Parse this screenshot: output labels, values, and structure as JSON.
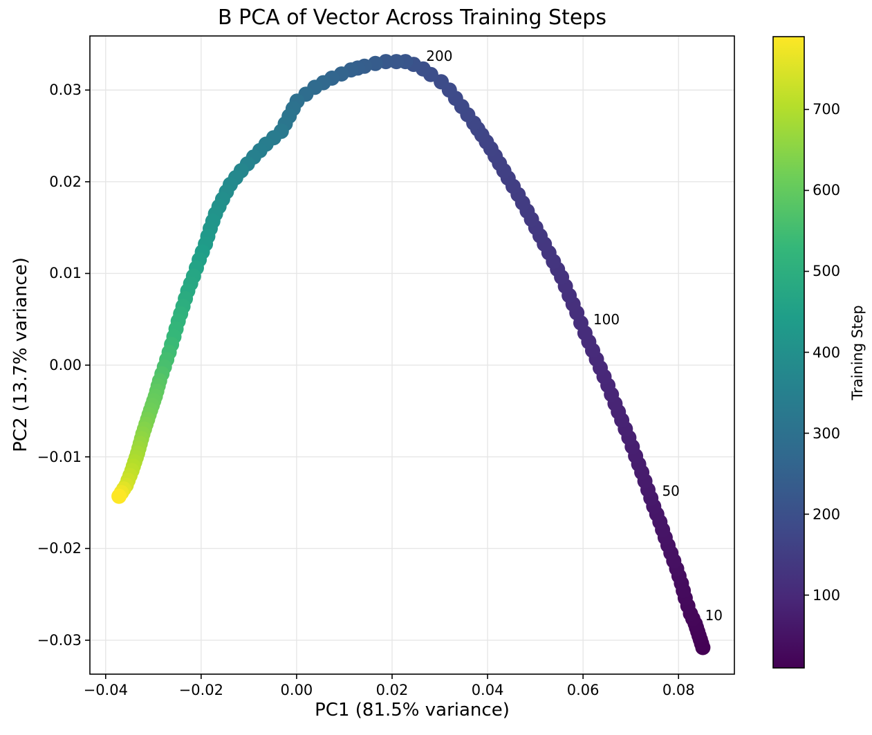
{
  "chart_data": {
    "type": "scatter",
    "title": "B PCA of Vector Across Training Steps",
    "xlabel": "PC1 (81.5% variance)",
    "ylabel": "PC2 (13.7% variance)",
    "xlim": [
      -0.0433,
      0.0917
    ],
    "ylim": [
      -0.0337,
      0.0359
    ],
    "grid": true,
    "grid_color": "#e6e6e6",
    "background": "#ffffff",
    "x_ticks": {
      "values": [
        -0.04,
        -0.02,
        0.0,
        0.02,
        0.04,
        0.06,
        0.08
      ],
      "labels": [
        "−0.04",
        "−0.02",
        "0.00",
        "0.02",
        "0.04",
        "0.06",
        "0.08"
      ]
    },
    "y_ticks": {
      "values": [
        -0.03,
        -0.02,
        -0.01,
        0.0,
        0.01,
        0.02,
        0.03
      ],
      "labels": [
        "−0.03",
        "−0.02",
        "−0.01",
        "0.00",
        "0.01",
        "0.02",
        "0.03"
      ]
    },
    "colorbar": {
      "label": "Training Step",
      "colormap": "viridis",
      "vmin": 10,
      "vmax": 790,
      "ticks": [
        100,
        200,
        300,
        400,
        500,
        600,
        700
      ],
      "viridis_stops": [
        "#440154",
        "#482878",
        "#3e4a89",
        "#31688e",
        "#26828e",
        "#1f9e89",
        "#35b779",
        "#6ece58",
        "#b5de2b",
        "#fde725"
      ]
    },
    "annotations": [
      {
        "text": "200",
        "x": 0.0299,
        "y": 0.0337
      },
      {
        "text": "100",
        "x": 0.0649,
        "y": 0.005
      },
      {
        "text": "50",
        "x": 0.0784,
        "y": -0.0137
      },
      {
        "text": "10",
        "x": 0.0874,
        "y": -0.0273
      }
    ],
    "points": [
      {
        "step": 10,
        "x": 0.0851,
        "y": -0.0308
      },
      {
        "step": 15,
        "x": 0.0843,
        "y": -0.0295
      },
      {
        "step": 20,
        "x": 0.0835,
        "y": -0.0282
      },
      {
        "step": 25,
        "x": 0.0825,
        "y": -0.0271
      },
      {
        "step": 30,
        "x": 0.0814,
        "y": -0.0254
      },
      {
        "step": 35,
        "x": 0.0806,
        "y": -0.0238
      },
      {
        "step": 40,
        "x": 0.0796,
        "y": -0.0222
      },
      {
        "step": 45,
        "x": 0.0784,
        "y": -0.0205
      },
      {
        "step": 50,
        "x": 0.0772,
        "y": -0.0188
      },
      {
        "step": 55,
        "x": 0.0761,
        "y": -0.0171
      },
      {
        "step": 60,
        "x": 0.0748,
        "y": -0.0154
      },
      {
        "step": 65,
        "x": 0.0736,
        "y": -0.0136
      },
      {
        "step": 70,
        "x": 0.0723,
        "y": -0.0117
      },
      {
        "step": 75,
        "x": 0.071,
        "y": -0.0099
      },
      {
        "step": 80,
        "x": 0.0696,
        "y": -0.0079
      },
      {
        "step": 85,
        "x": 0.0681,
        "y": -0.006
      },
      {
        "step": 90,
        "x": 0.0667,
        "y": -0.0042
      },
      {
        "step": 95,
        "x": 0.0652,
        "y": -0.0022
      },
      {
        "step": 100,
        "x": 0.0636,
        "y": -0.0003
      },
      {
        "step": 105,
        "x": 0.062,
        "y": 0.0016
      },
      {
        "step": 110,
        "x": 0.0604,
        "y": 0.0035
      },
      {
        "step": 115,
        "x": 0.0587,
        "y": 0.0057
      },
      {
        "step": 120,
        "x": 0.0571,
        "y": 0.0076
      },
      {
        "step": 125,
        "x": 0.0555,
        "y": 0.0096
      },
      {
        "step": 130,
        "x": 0.0538,
        "y": 0.0113
      },
      {
        "step": 135,
        "x": 0.0519,
        "y": 0.0132
      },
      {
        "step": 140,
        "x": 0.0501,
        "y": 0.015
      },
      {
        "step": 145,
        "x": 0.0483,
        "y": 0.0168
      },
      {
        "step": 150,
        "x": 0.0464,
        "y": 0.0186
      },
      {
        "step": 155,
        "x": 0.0443,
        "y": 0.0204
      },
      {
        "step": 160,
        "x": 0.0425,
        "y": 0.022
      },
      {
        "step": 165,
        "x": 0.0407,
        "y": 0.0236
      },
      {
        "step": 170,
        "x": 0.0388,
        "y": 0.0251
      },
      {
        "step": 175,
        "x": 0.0371,
        "y": 0.0264
      },
      {
        "step": 180,
        "x": 0.0346,
        "y": 0.0282
      },
      {
        "step": 185,
        "x": 0.032,
        "y": 0.03
      },
      {
        "step": 190,
        "x": 0.0303,
        "y": 0.0309
      },
      {
        "step": 195,
        "x": 0.0281,
        "y": 0.0317
      },
      {
        "step": 200,
        "x": 0.0265,
        "y": 0.0323
      },
      {
        "step": 205,
        "x": 0.0245,
        "y": 0.0328
      },
      {
        "step": 215,
        "x": 0.0228,
        "y": 0.0331
      },
      {
        "step": 220,
        "x": 0.0209,
        "y": 0.0331
      },
      {
        "step": 225,
        "x": 0.0187,
        "y": 0.0331
      },
      {
        "step": 235,
        "x": 0.0165,
        "y": 0.0329
      },
      {
        "step": 240,
        "x": 0.0142,
        "y": 0.0326
      },
      {
        "step": 250,
        "x": 0.0114,
        "y": 0.0322
      },
      {
        "step": 265,
        "x": 0.0074,
        "y": 0.0313
      },
      {
        "step": 280,
        "x": 0.0038,
        "y": 0.0303
      },
      {
        "step": 295,
        "x": 0.0001,
        "y": 0.0288
      },
      {
        "step": 325,
        "x": -0.0032,
        "y": 0.0255
      },
      {
        "step": 340,
        "x": -0.0064,
        "y": 0.0241
      },
      {
        "step": 350,
        "x": -0.009,
        "y": 0.0227
      },
      {
        "step": 370,
        "x": -0.0116,
        "y": 0.0212
      },
      {
        "step": 380,
        "x": -0.0139,
        "y": 0.0197
      },
      {
        "step": 395,
        "x": -0.0155,
        "y": 0.0181
      },
      {
        "step": 410,
        "x": -0.017,
        "y": 0.0165
      },
      {
        "step": 420,
        "x": -0.0181,
        "y": 0.0149
      },
      {
        "step": 435,
        "x": -0.0191,
        "y": 0.0132
      },
      {
        "step": 450,
        "x": -0.0204,
        "y": 0.0115
      },
      {
        "step": 470,
        "x": -0.0216,
        "y": 0.0097
      },
      {
        "step": 480,
        "x": -0.0228,
        "y": 0.0081
      },
      {
        "step": 500,
        "x": -0.0238,
        "y": 0.0064
      },
      {
        "step": 515,
        "x": -0.0248,
        "y": 0.0048
      },
      {
        "step": 530,
        "x": -0.0257,
        "y": 0.0031
      },
      {
        "step": 545,
        "x": -0.0267,
        "y": 0.0014
      },
      {
        "step": 560,
        "x": -0.0277,
        "y": -0.0002
      },
      {
        "step": 580,
        "x": -0.0287,
        "y": -0.0017
      },
      {
        "step": 600,
        "x": -0.0296,
        "y": -0.0034
      },
      {
        "step": 620,
        "x": -0.0309,
        "y": -0.0054
      },
      {
        "step": 650,
        "x": -0.0322,
        "y": -0.0075
      },
      {
        "step": 680,
        "x": -0.0333,
        "y": -0.0096
      },
      {
        "step": 710,
        "x": -0.0345,
        "y": -0.0115
      },
      {
        "step": 740,
        "x": -0.0357,
        "y": -0.0131
      },
      {
        "step": 790,
        "x": -0.0372,
        "y": -0.0143
      }
    ]
  }
}
